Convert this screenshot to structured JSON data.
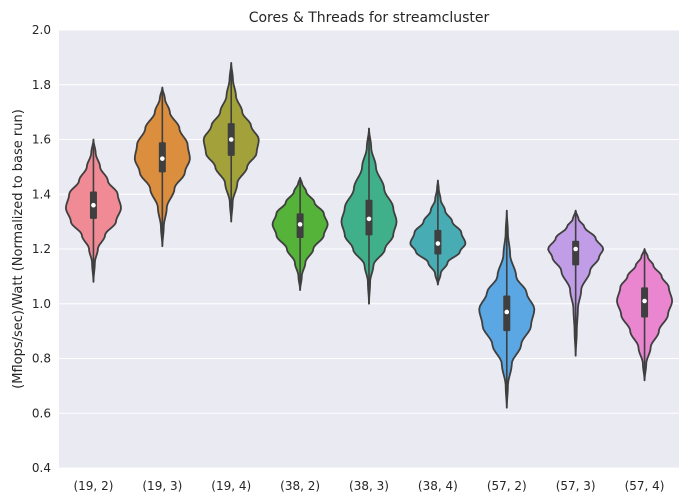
{
  "chart_data": {
    "type": "violin",
    "title": "Cores & Threads for streamcluster",
    "xlabel": "",
    "ylabel": "(Mflops/sec)/Watt (Normalized to base run)",
    "ylim": [
      0.4,
      2.0
    ],
    "yticks": [
      "0.4",
      "0.6",
      "0.8",
      "1.0",
      "1.2",
      "1.4",
      "1.6",
      "1.8",
      "2.0"
    ],
    "grid": true,
    "categories": [
      "(19, 2)",
      "(19, 3)",
      "(19, 4)",
      "(38, 2)",
      "(38, 3)",
      "(38, 4)",
      "(57, 2)",
      "(57, 3)",
      "(57, 4)"
    ],
    "colors": [
      "#f08a94",
      "#db8e3e",
      "#a3a23a",
      "#55b33a",
      "#3fb08a",
      "#47acb4",
      "#5aa7e3",
      "#c09de6",
      "#ea86cf"
    ],
    "series": [
      {
        "name": "(19, 2)",
        "min": 1.08,
        "max": 1.6,
        "q1": 1.31,
        "median": 1.36,
        "q3": 1.41,
        "profile": [
          [
            1.08,
            0.0
          ],
          [
            1.15,
            0.05
          ],
          [
            1.2,
            0.16
          ],
          [
            1.25,
            0.42
          ],
          [
            1.3,
            0.82
          ],
          [
            1.35,
            1.0
          ],
          [
            1.4,
            0.88
          ],
          [
            1.45,
            0.52
          ],
          [
            1.5,
            0.24
          ],
          [
            1.55,
            0.08
          ],
          [
            1.6,
            0.0
          ]
        ]
      },
      {
        "name": "(19, 3)",
        "min": 1.21,
        "max": 1.79,
        "q1": 1.48,
        "median": 1.53,
        "q3": 1.59,
        "profile": [
          [
            1.21,
            0.0
          ],
          [
            1.28,
            0.05
          ],
          [
            1.35,
            0.16
          ],
          [
            1.42,
            0.44
          ],
          [
            1.48,
            0.82
          ],
          [
            1.53,
            1.0
          ],
          [
            1.58,
            0.92
          ],
          [
            1.64,
            0.62
          ],
          [
            1.7,
            0.27
          ],
          [
            1.75,
            0.09
          ],
          [
            1.79,
            0.0
          ]
        ]
      },
      {
        "name": "(19, 4)",
        "min": 1.3,
        "max": 1.88,
        "q1": 1.54,
        "median": 1.6,
        "q3": 1.66,
        "profile": [
          [
            1.3,
            0.0
          ],
          [
            1.37,
            0.05
          ],
          [
            1.44,
            0.22
          ],
          [
            1.5,
            0.58
          ],
          [
            1.55,
            0.92
          ],
          [
            1.6,
            1.0
          ],
          [
            1.65,
            0.72
          ],
          [
            1.7,
            0.4
          ],
          [
            1.76,
            0.17
          ],
          [
            1.82,
            0.06
          ],
          [
            1.88,
            0.0
          ]
        ]
      },
      {
        "name": "(38, 2)",
        "min": 1.05,
        "max": 1.46,
        "q1": 1.24,
        "median": 1.29,
        "q3": 1.33,
        "profile": [
          [
            1.05,
            0.0
          ],
          [
            1.1,
            0.06
          ],
          [
            1.15,
            0.19
          ],
          [
            1.2,
            0.48
          ],
          [
            1.25,
            0.86
          ],
          [
            1.29,
            1.0
          ],
          [
            1.33,
            0.86
          ],
          [
            1.37,
            0.52
          ],
          [
            1.41,
            0.22
          ],
          [
            1.44,
            0.07
          ],
          [
            1.46,
            0.0
          ]
        ]
      },
      {
        "name": "(38, 3)",
        "min": 1.0,
        "max": 1.64,
        "q1": 1.25,
        "median": 1.31,
        "q3": 1.38,
        "profile": [
          [
            1.0,
            0.0
          ],
          [
            1.08,
            0.04
          ],
          [
            1.14,
            0.16
          ],
          [
            1.2,
            0.58
          ],
          [
            1.25,
            0.88
          ],
          [
            1.3,
            1.0
          ],
          [
            1.35,
            0.88
          ],
          [
            1.42,
            0.55
          ],
          [
            1.5,
            0.25
          ],
          [
            1.57,
            0.08
          ],
          [
            1.64,
            0.0
          ]
        ]
      },
      {
        "name": "(38, 4)",
        "min": 1.07,
        "max": 1.45,
        "q1": 1.18,
        "median": 1.22,
        "q3": 1.27,
        "profile": [
          [
            1.07,
            0.0
          ],
          [
            1.11,
            0.1
          ],
          [
            1.15,
            0.35
          ],
          [
            1.19,
            0.8
          ],
          [
            1.22,
            1.0
          ],
          [
            1.26,
            0.85
          ],
          [
            1.3,
            0.52
          ],
          [
            1.34,
            0.26
          ],
          [
            1.38,
            0.1
          ],
          [
            1.42,
            0.03
          ],
          [
            1.45,
            0.0
          ]
        ]
      },
      {
        "name": "(57, 2)",
        "min": 0.62,
        "max": 1.34,
        "q1": 0.9,
        "median": 0.97,
        "q3": 1.03,
        "profile": [
          [
            0.62,
            0.0
          ],
          [
            0.7,
            0.04
          ],
          [
            0.78,
            0.18
          ],
          [
            0.85,
            0.52
          ],
          [
            0.92,
            0.88
          ],
          [
            0.98,
            1.0
          ],
          [
            1.04,
            0.72
          ],
          [
            1.1,
            0.34
          ],
          [
            1.18,
            0.12
          ],
          [
            1.26,
            0.04
          ],
          [
            1.34,
            0.0
          ]
        ]
      },
      {
        "name": "(57, 3)",
        "min": 0.81,
        "max": 1.34,
        "q1": 1.14,
        "median": 1.2,
        "q3": 1.23,
        "profile": [
          [
            0.81,
            0.0
          ],
          [
            0.9,
            0.04
          ],
          [
            0.98,
            0.08
          ],
          [
            1.05,
            0.2
          ],
          [
            1.12,
            0.52
          ],
          [
            1.17,
            0.85
          ],
          [
            1.2,
            1.0
          ],
          [
            1.24,
            0.72
          ],
          [
            1.28,
            0.32
          ],
          [
            1.31,
            0.1
          ],
          [
            1.34,
            0.0
          ]
        ]
      },
      {
        "name": "(57, 4)",
        "min": 0.72,
        "max": 1.2,
        "q1": 0.95,
        "median": 1.01,
        "q3": 1.06,
        "profile": [
          [
            0.72,
            0.0
          ],
          [
            0.78,
            0.06
          ],
          [
            0.84,
            0.22
          ],
          [
            0.9,
            0.52
          ],
          [
            0.96,
            0.85
          ],
          [
            1.01,
            1.0
          ],
          [
            1.06,
            0.88
          ],
          [
            1.1,
            0.62
          ],
          [
            1.14,
            0.32
          ],
          [
            1.17,
            0.12
          ],
          [
            1.2,
            0.0
          ]
        ]
      }
    ]
  }
}
